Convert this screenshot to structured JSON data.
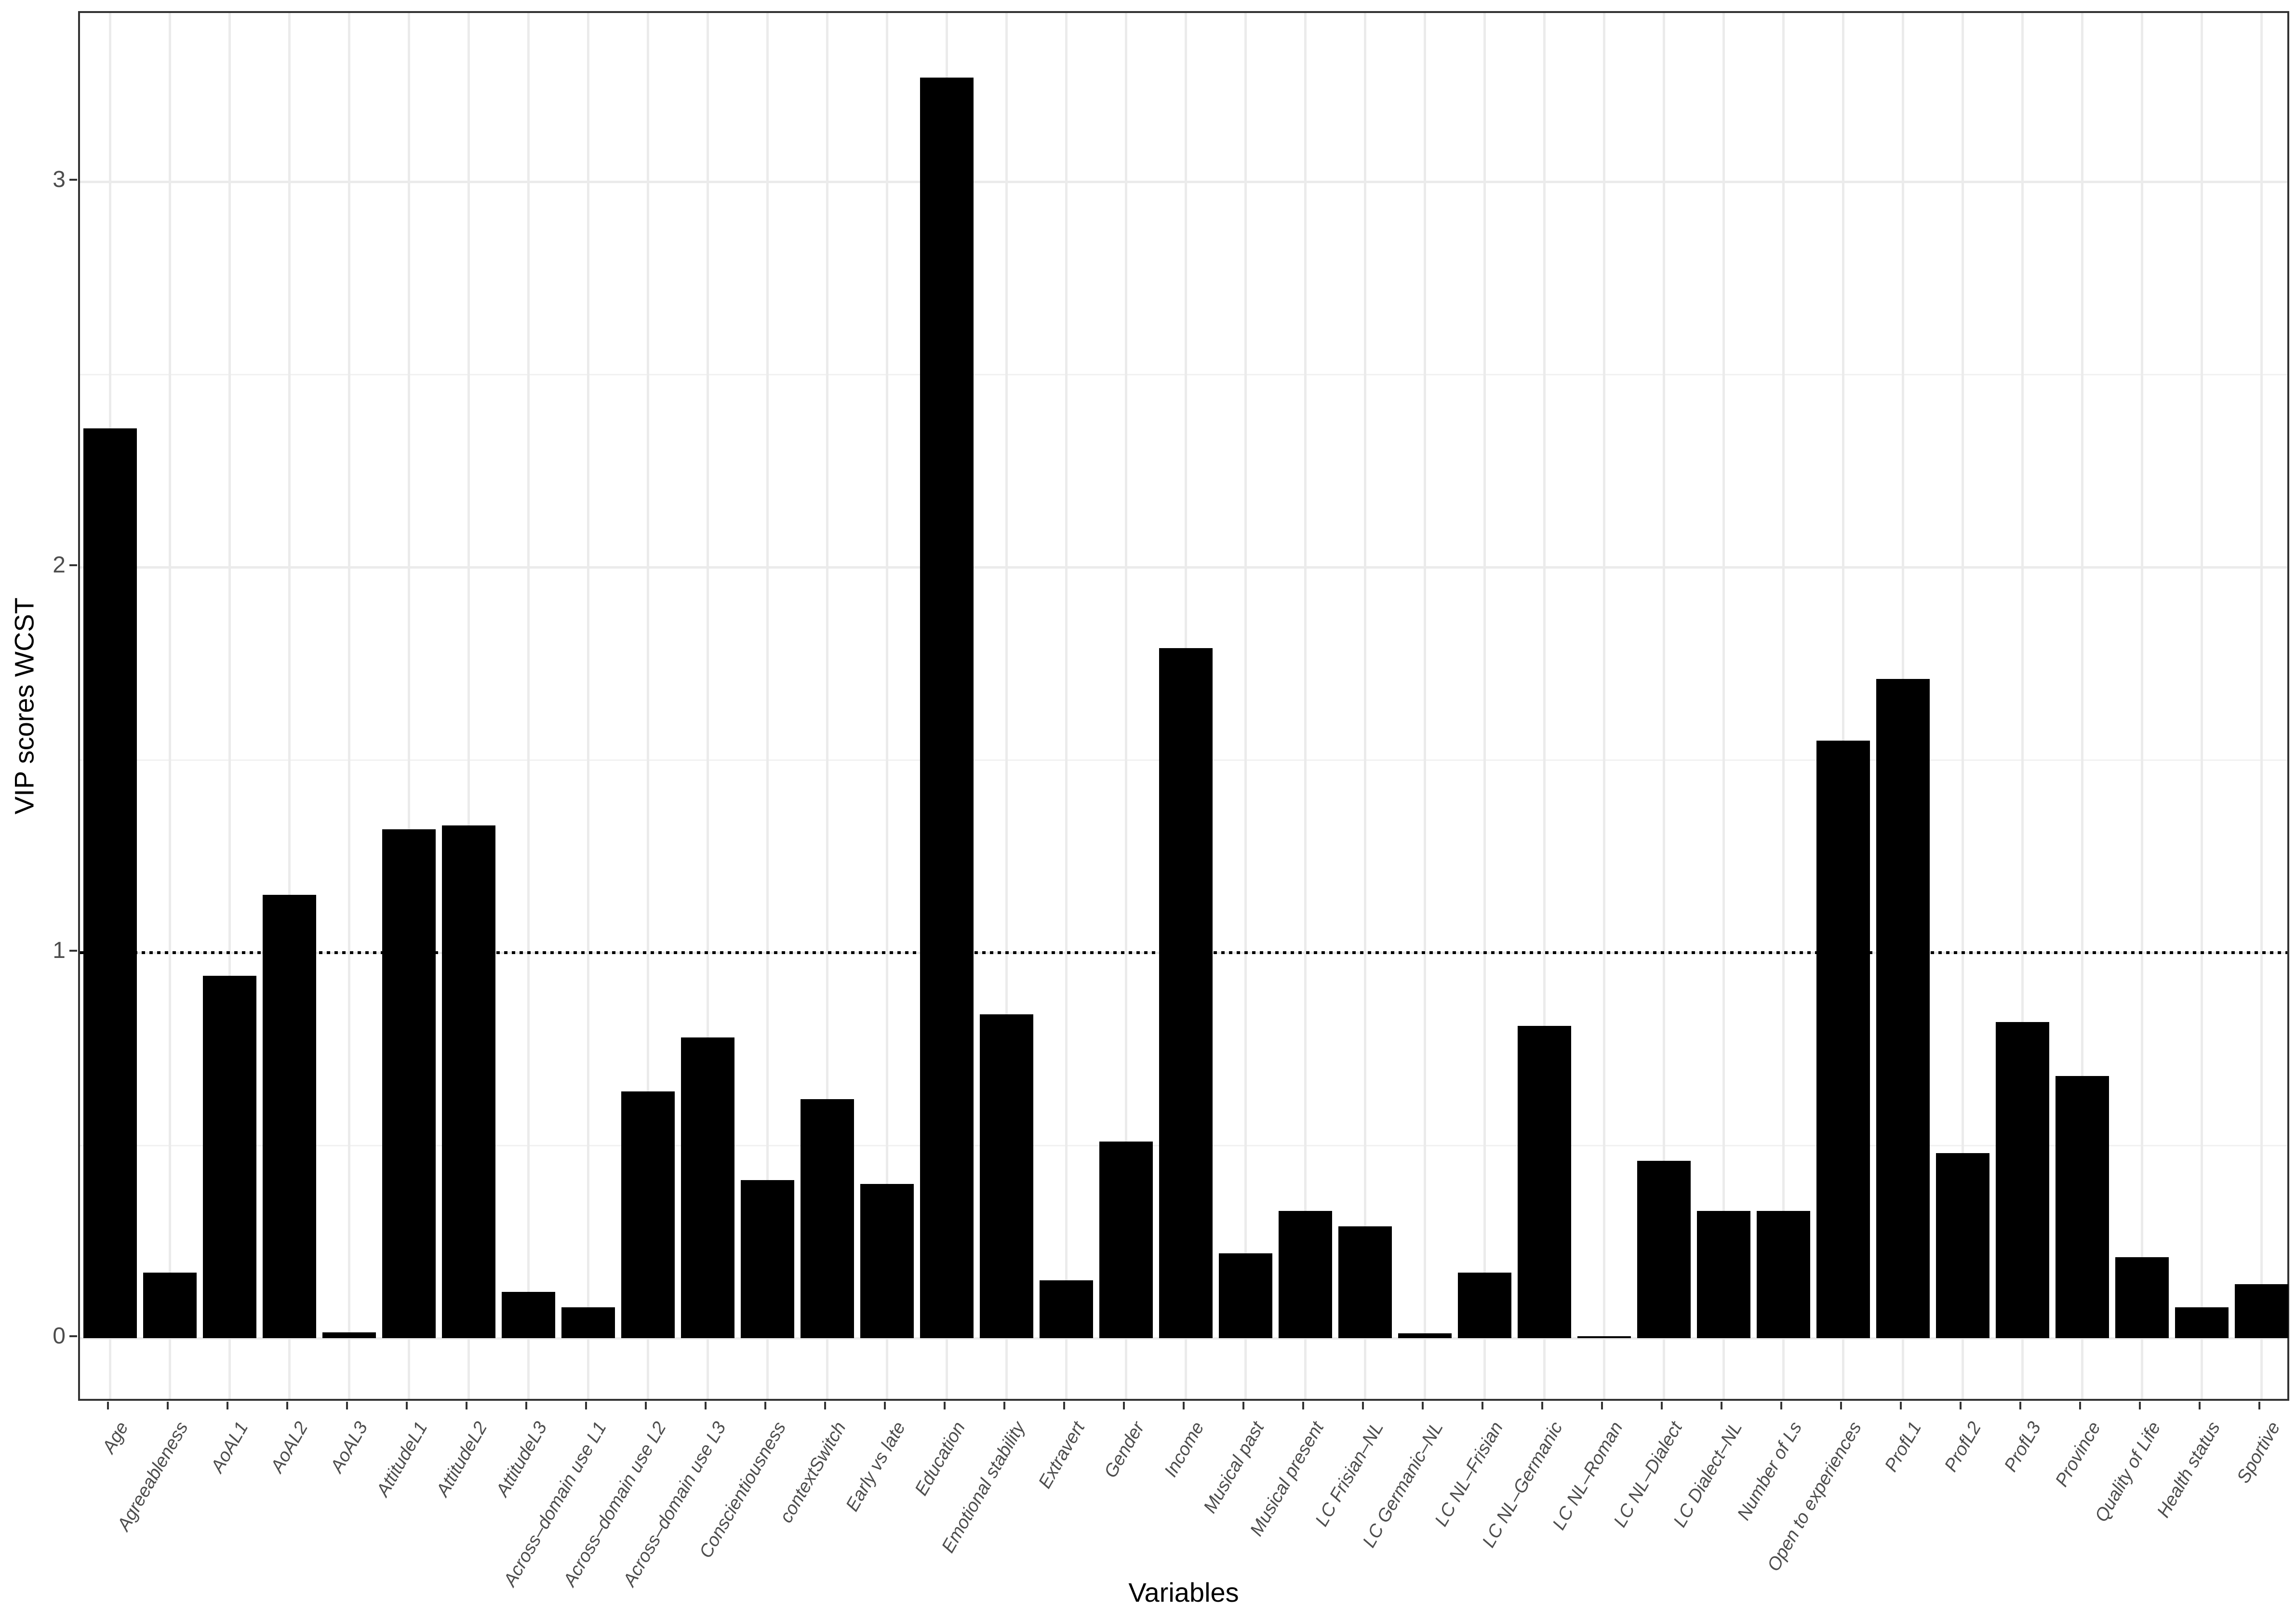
{
  "chart_data": {
    "type": "bar",
    "title": "",
    "xlabel": "Variables",
    "ylabel": "VIP scores WCST",
    "categories": [
      "Age",
      "Agreeableness",
      "AoAL1",
      "AoAL2",
      "AoAL3",
      "AttitudeL1",
      "AttitudeL2",
      "AttitudeL3",
      "Across–domain use L1",
      "Across–domain use L2",
      "Across–domain use L3",
      "Conscientiousness",
      "contextSwitch",
      "Early vs late",
      "Education",
      "Emotional stability",
      "Extravert",
      "Gender",
      "Income",
      "Musical past",
      "Musical present",
      "LC Frisian–NL",
      "LC Germanic–NL",
      "LC NL–Frisian",
      "LC NL–Germanic",
      "LC NL–Roman",
      "LC NL–Dialect",
      "LC Dialect–NL",
      "Number of Ls",
      "Open to experiences",
      "ProfL1",
      "ProfL2",
      "ProfL3",
      "Province",
      "Quality of Life",
      "Health status",
      "Sportive"
    ],
    "values": [
      2.36,
      0.17,
      0.94,
      1.15,
      0.015,
      1.32,
      1.33,
      0.12,
      0.08,
      0.64,
      0.78,
      0.41,
      0.62,
      0.4,
      3.27,
      0.84,
      0.15,
      0.51,
      1.79,
      0.22,
      0.33,
      0.29,
      0.012,
      0.17,
      0.81,
      0.005,
      0.46,
      0.33,
      0.33,
      1.55,
      1.71,
      0.48,
      0.82,
      0.68,
      0.21,
      0.08,
      0.14
    ],
    "yticks": [
      0,
      1,
      2,
      3
    ],
    "ytick_labels": [
      "0",
      "1",
      "2",
      "3"
    ],
    "minor_yticks": [
      0.5,
      1.5,
      2.5
    ],
    "ylim": [
      -0.17,
      3.44
    ],
    "reference_line": {
      "y": 1,
      "style": "dotted",
      "color": "#000000"
    },
    "bar_color": "#000000",
    "grid": true,
    "legend_position": "none"
  },
  "colors": {
    "background": "#ffffff",
    "bar": "#000000",
    "grid_major": "#ebebeb",
    "grid_minor": "#f1f1f1",
    "panel_border": "#333333",
    "tick_mark": "#333333",
    "tick_text": "#4d4d4d",
    "title_text": "#000000"
  }
}
